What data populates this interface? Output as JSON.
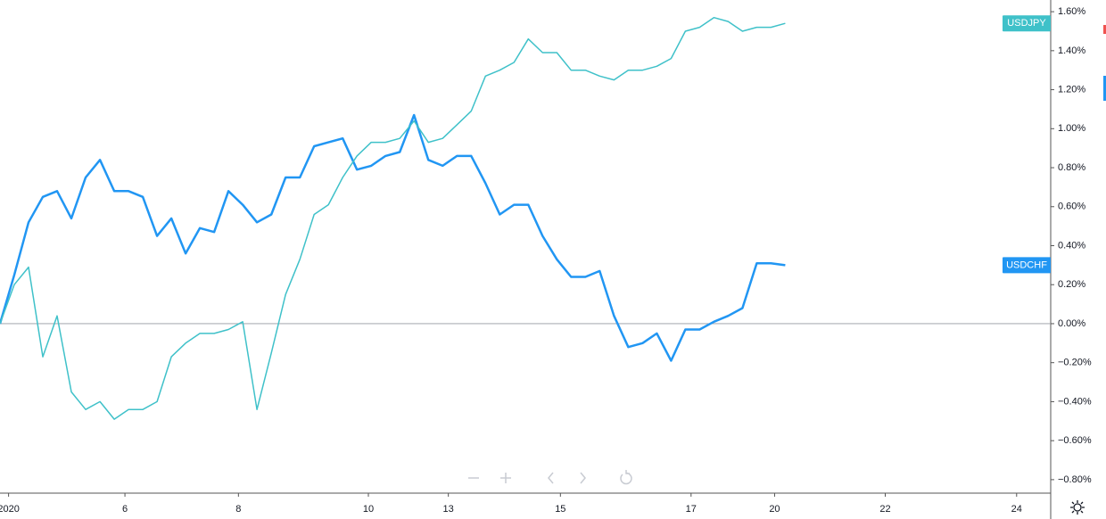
{
  "chart_data": {
    "type": "line",
    "series": [
      {
        "name": "USDCHF",
        "color": "#2196f3",
        "width": 2.5,
        "values": [
          0.0,
          0.25,
          0.52,
          0.65,
          0.68,
          0.54,
          0.75,
          0.84,
          0.68,
          0.68,
          0.65,
          0.45,
          0.54,
          0.36,
          0.49,
          0.47,
          0.68,
          0.61,
          0.52,
          0.56,
          0.75,
          0.75,
          0.91,
          0.93,
          0.95,
          0.79,
          0.81,
          0.86,
          0.88,
          1.07,
          0.84,
          0.81,
          0.86,
          0.86,
          0.72,
          0.56,
          0.61,
          0.61,
          0.45,
          0.33,
          0.24,
          0.24,
          0.27,
          0.04,
          -0.12,
          -0.1,
          -0.05,
          -0.19,
          -0.03,
          -0.03,
          0.01,
          0.04,
          0.08,
          0.31,
          0.31,
          0.3
        ]
      },
      {
        "name": "USDJPY",
        "color": "#3fc1c9",
        "width": 1.5,
        "values": [
          0.0,
          0.2,
          0.29,
          -0.17,
          0.04,
          -0.35,
          -0.44,
          -0.4,
          -0.49,
          -0.44,
          -0.44,
          -0.4,
          -0.17,
          -0.1,
          -0.05,
          -0.05,
          -0.03,
          0.01,
          -0.44,
          -0.15,
          0.15,
          0.33,
          0.56,
          0.61,
          0.75,
          0.86,
          0.93,
          0.93,
          0.95,
          1.04,
          0.93,
          0.95,
          1.02,
          1.09,
          1.27,
          1.3,
          1.34,
          1.46,
          1.39,
          1.39,
          1.3,
          1.3,
          1.27,
          1.25,
          1.3,
          1.3,
          1.32,
          1.36,
          1.5,
          1.52,
          1.57,
          1.55,
          1.5,
          1.52,
          1.52,
          1.54
        ]
      }
    ],
    "xlim": [
      0,
      73.4
    ],
    "xticks": [
      {
        "value": 0.6,
        "label": "2020"
      },
      {
        "value": 8.75,
        "label": "6"
      },
      {
        "value": 16.7,
        "label": "8"
      },
      {
        "value": 25.8,
        "label": "10"
      },
      {
        "value": 31.4,
        "label": "13"
      },
      {
        "value": 39.25,
        "label": "15"
      },
      {
        "value": 48.4,
        "label": "17"
      },
      {
        "value": 54.25,
        "label": "20"
      },
      {
        "value": 62,
        "label": "22"
      },
      {
        "value": 71.2,
        "label": "24"
      }
    ],
    "ylim": [
      -0.86,
      1.66
    ],
    "yticks": [
      {
        "value": -0.8,
        "label": "−0.80%"
      },
      {
        "value": -0.6,
        "label": "−0.60%"
      },
      {
        "value": -0.4,
        "label": "−0.40%"
      },
      {
        "value": -0.2,
        "label": "−0.20%"
      },
      {
        "value": 0,
        "label": "0.00%"
      },
      {
        "value": 0.2,
        "label": "0.20%"
      },
      {
        "value": 0.4,
        "label": "0.40%"
      },
      {
        "value": 0.6,
        "label": "0.60%"
      },
      {
        "value": 0.8,
        "label": "0.80%"
      },
      {
        "value": 1.0,
        "label": "1.00%"
      },
      {
        "value": 1.2,
        "label": "1.20%"
      },
      {
        "value": 1.4,
        "label": "1.40%"
      },
      {
        "value": 1.6,
        "label": "1.60%"
      }
    ],
    "zero_line": true
  }
}
